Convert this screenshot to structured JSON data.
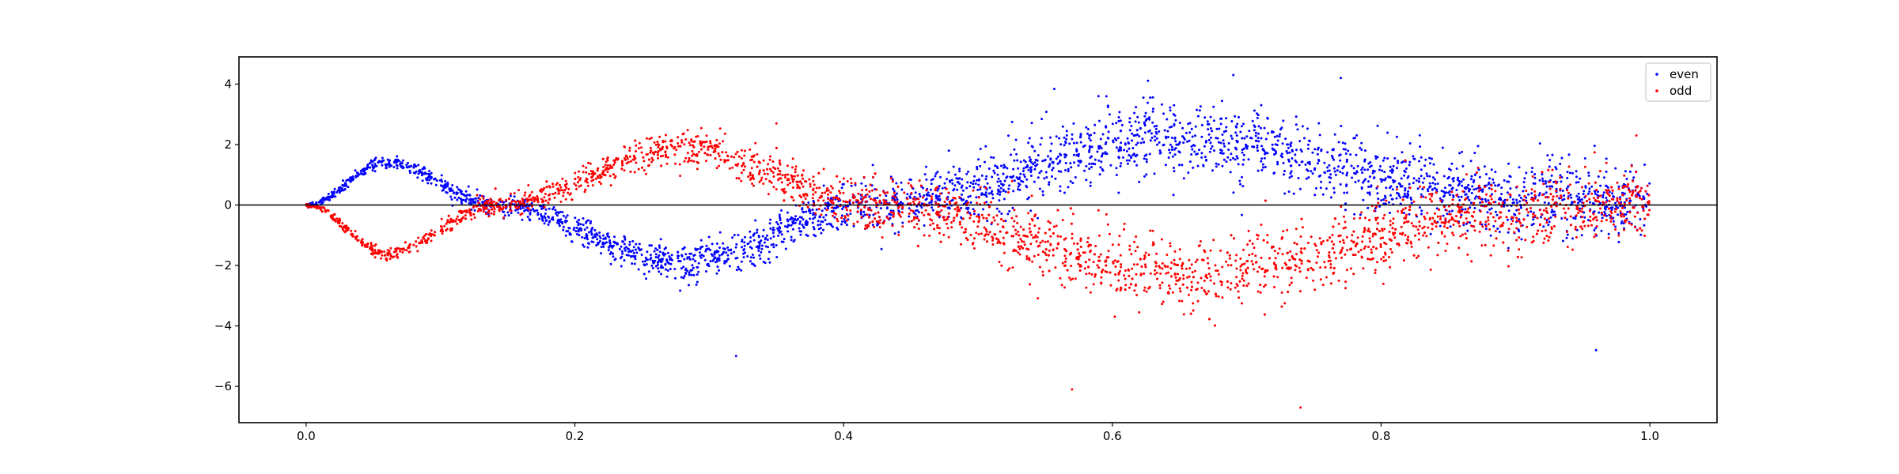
{
  "chart_data": {
    "type": "scatter",
    "title": "",
    "xlabel": "",
    "ylabel": "",
    "xlim": [
      -0.05,
      1.05
    ],
    "ylim": [
      -7.2,
      4.9
    ],
    "xticks": [
      0.0,
      0.2,
      0.4,
      0.6,
      0.8,
      1.0
    ],
    "xtick_labels": [
      "0.0",
      "0.2",
      "0.4",
      "0.6",
      "0.8",
      "1.0"
    ],
    "yticks": [
      4,
      2,
      0,
      -2,
      -4,
      -6
    ],
    "ytick_labels": [
      "4",
      "2",
      "0",
      "−2",
      "−4",
      "−6"
    ],
    "grid": false,
    "reference_line": {
      "y": 0,
      "color": "#000000"
    },
    "legend": {
      "position": "top-right",
      "entries": [
        "even",
        "odd"
      ]
    },
    "series": [
      {
        "name": "even",
        "color": "#0000ff",
        "shape": "sinusoidal band",
        "points_approx": 5000,
        "trend": [
          {
            "x": 0.0,
            "y": 0.0
          },
          {
            "x": 0.06,
            "y": 1.4
          },
          {
            "x": 0.14,
            "y": 0.0
          },
          {
            "x": 0.28,
            "y": -1.9
          },
          {
            "x": 0.42,
            "y": 0.0
          },
          {
            "x": 0.65,
            "y": 2.2
          },
          {
            "x": 0.9,
            "y": 0.3
          },
          {
            "x": 1.0,
            "y": 0.0
          }
        ],
        "extremes": [
          {
            "x": 0.69,
            "y": 4.3
          },
          {
            "x": 0.77,
            "y": 4.2
          },
          {
            "x": 0.32,
            "y": -5.0
          },
          {
            "x": 0.96,
            "y": -4.8
          }
        ]
      },
      {
        "name": "odd",
        "color": "#ff0000",
        "shape": "sinusoidal band",
        "points_approx": 5000,
        "trend": [
          {
            "x": 0.0,
            "y": 0.0
          },
          {
            "x": 0.06,
            "y": -1.6
          },
          {
            "x": 0.14,
            "y": 0.0
          },
          {
            "x": 0.28,
            "y": 1.9
          },
          {
            "x": 0.42,
            "y": 0.0
          },
          {
            "x": 0.65,
            "y": -2.3
          },
          {
            "x": 0.9,
            "y": -0.3
          },
          {
            "x": 1.0,
            "y": 0.0
          }
        ],
        "extremes": [
          {
            "x": 0.35,
            "y": 2.7
          },
          {
            "x": 0.57,
            "y": -6.1
          },
          {
            "x": 0.74,
            "y": -6.7
          },
          {
            "x": 0.99,
            "y": 2.3
          }
        ]
      }
    ]
  }
}
